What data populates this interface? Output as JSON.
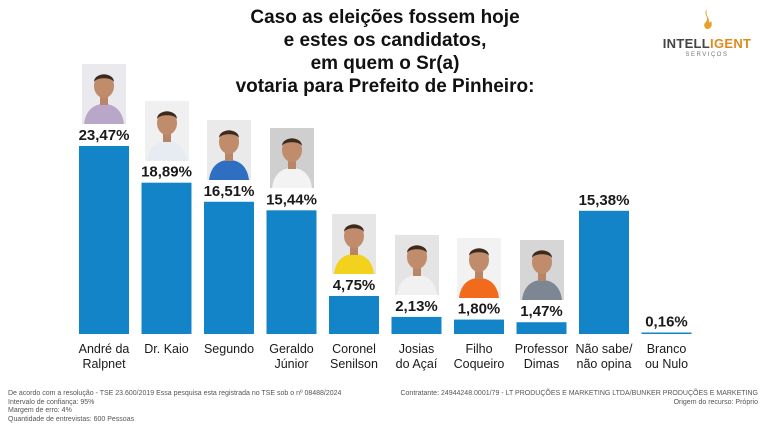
{
  "title_lines": [
    "Caso as eleições fossem hoje",
    "e estes os candidatos,",
    "em quem o Sr(a)",
    "votaria para Prefeito de Pinheiro:"
  ],
  "logo": {
    "brand_a": "INTELL",
    "brand_b": "IGENT",
    "sub": "SERVIÇOS",
    "accent_color": "#e08a1e"
  },
  "chart_data": {
    "type": "bar",
    "categories": [
      [
        "André da",
        "Ralpnet"
      ],
      [
        "Dr. Kaio"
      ],
      [
        "Segundo"
      ],
      [
        "Geraldo",
        "Júnior"
      ],
      [
        "Coronel",
        "Senilson"
      ],
      [
        "Josias",
        "do Açaí"
      ],
      [
        "Filho",
        "Coqueiro"
      ],
      [
        "Professor",
        "Dimas"
      ],
      [
        "Não sabe/",
        "não opina"
      ],
      [
        "Branco",
        "ou Nulo"
      ]
    ],
    "values": [
      23.47,
      18.89,
      16.51,
      15.44,
      4.75,
      2.13,
      1.8,
      1.47,
      15.38,
      0.16
    ],
    "value_labels": [
      "23,47%",
      "18,89%",
      "16,51%",
      "15,44%",
      "4,75%",
      "2,13%",
      "1,80%",
      "1,47%",
      "15,38%",
      "0,16%"
    ],
    "bar_color": "#1384c8",
    "photos": [
      {
        "name": "andre-photo",
        "shirt": "#b9a7c9",
        "bg": "#e9e9ee"
      },
      {
        "name": "kaio-photo",
        "shirt": "#e7ecf2",
        "bg": "#f0f0f0"
      },
      {
        "name": "segundo-photo",
        "shirt": "#2f6fc2",
        "bg": "#eaeaea"
      },
      {
        "name": "geraldo-photo",
        "shirt": "#f3f3f3",
        "bg": "#cfcfcf"
      },
      {
        "name": "senilson-photo",
        "shirt": "#f2d21d",
        "bg": "#e6e6e6"
      },
      {
        "name": "josias-photo",
        "shirt": "#f1f1f1",
        "bg": "#e4e4e4"
      },
      {
        "name": "coqueiro-photo",
        "shirt": "#f26a1b",
        "bg": "#f2f2f2"
      },
      {
        "name": "dimas-photo",
        "shirt": "#7d8693",
        "bg": "#d6d6d6"
      }
    ]
  },
  "footer": {
    "left": [
      "De acordo com a resolução - TSE 23.600/2019 Essa pesquisa esta registrada no TSE sob o nº 08488/2024",
      "Intervalo de confiança: 95%",
      "Margem de erro: 4%",
      "Quantidade de entrevistas: 600 Pessoas"
    ],
    "right": [
      "Contratante: 24944248.0001/79 - LT PRODUÇÕES E MARKETING LTDA/BUNKER PRODUÇÕES E MARKETING",
      "Origem do recurso: Próprio"
    ]
  }
}
